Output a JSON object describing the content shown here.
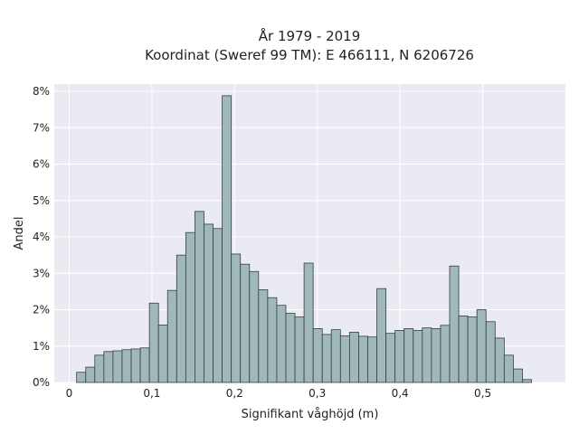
{
  "chart_data": {
    "type": "bar",
    "title_line1": "År 1979 - 2019",
    "title_line2": "Koordinat (Sweref 99 TM): E 466111, N 6206726",
    "xlabel": "Signifikant våghöjd (m)",
    "ylabel": "Andel",
    "xlim": [
      -0.018,
      0.6
    ],
    "ylim": [
      0,
      8.2
    ],
    "grid": true,
    "bin_width": 0.011,
    "bin_start": 0.009,
    "x_ticks": [
      {
        "value": 0,
        "label": "0"
      },
      {
        "value": 0.1,
        "label": "0,1"
      },
      {
        "value": 0.2,
        "label": "0,2"
      },
      {
        "value": 0.3,
        "label": "0,3"
      },
      {
        "value": 0.4,
        "label": "0,4"
      },
      {
        "value": 0.5,
        "label": "0,5"
      }
    ],
    "y_ticks": [
      {
        "value": 0,
        "label": "0%"
      },
      {
        "value": 1,
        "label": "1%"
      },
      {
        "value": 2,
        "label": "2%"
      },
      {
        "value": 3,
        "label": "3%"
      },
      {
        "value": 4,
        "label": "4%"
      },
      {
        "value": 5,
        "label": "5%"
      },
      {
        "value": 6,
        "label": "6%"
      },
      {
        "value": 7,
        "label": "7%"
      },
      {
        "value": 8,
        "label": "8%"
      }
    ],
    "values": [
      0.28,
      0.42,
      0.75,
      0.85,
      0.87,
      0.9,
      0.92,
      0.95,
      2.18,
      1.58,
      2.53,
      3.5,
      4.12,
      4.7,
      4.35,
      4.23,
      7.88,
      3.53,
      3.25,
      3.05,
      2.55,
      2.33,
      2.12,
      1.9,
      1.8,
      3.28,
      1.48,
      1.32,
      1.45,
      1.28,
      1.38,
      1.27,
      1.25,
      2.58,
      1.35,
      1.43,
      1.48,
      1.43,
      1.5,
      1.48,
      1.57,
      3.2,
      1.83,
      1.8,
      2.0,
      1.67,
      1.22,
      0.75,
      0.37,
      0.08
    ],
    "colors": {
      "bar_fill": "#a0b8b9",
      "bar_stroke": "#33403f",
      "plot_bg": "#eaeaf2",
      "grid": "#ffffff"
    }
  }
}
